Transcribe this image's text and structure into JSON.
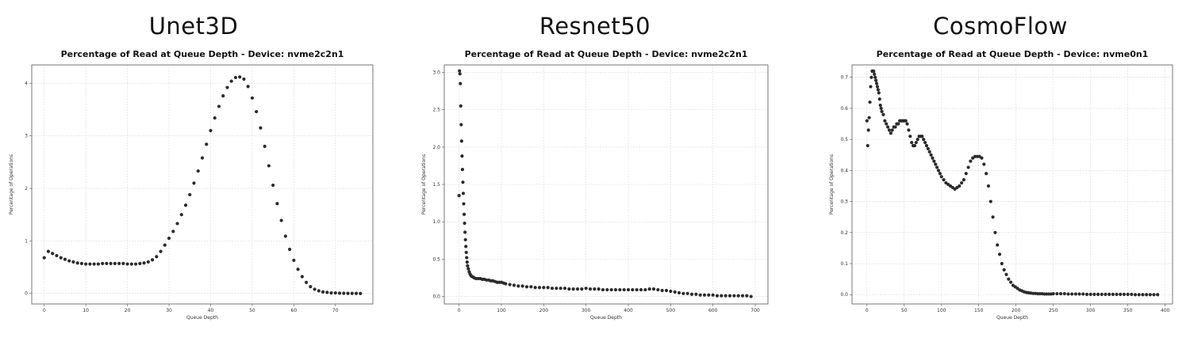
{
  "panels": [
    {
      "heading": "Unet3D"
    },
    {
      "heading": "Resnet50"
    },
    {
      "heading": "CosmoFlow"
    }
  ],
  "chart_data": [
    {
      "type": "scatter",
      "title": "Percentage of Read at Queue Depth - Device: nvme2c2n1",
      "xlabel": "Queue Depth",
      "ylabel": "Percentage of Operations",
      "xlim": [
        -3,
        79
      ],
      "ylim": [
        -0.2,
        4.35
      ],
      "xticks": [
        0,
        10,
        20,
        30,
        40,
        50,
        60,
        70
      ],
      "yticks": [
        0,
        1,
        2,
        3,
        4
      ],
      "grid": true,
      "color": "#2b2b2b",
      "x": [
        0,
        1,
        2,
        3,
        4,
        5,
        6,
        7,
        8,
        9,
        10,
        11,
        12,
        13,
        14,
        15,
        16,
        17,
        18,
        19,
        20,
        21,
        22,
        23,
        24,
        25,
        26,
        27,
        28,
        29,
        30,
        31,
        32,
        33,
        34,
        35,
        36,
        37,
        38,
        39,
        40,
        41,
        42,
        43,
        44,
        45,
        46,
        47,
        48,
        49,
        50,
        51,
        52,
        53,
        54,
        55,
        56,
        57,
        58,
        59,
        60,
        61,
        62,
        63,
        64,
        65,
        66,
        67,
        68,
        69,
        70,
        71,
        72,
        73,
        74,
        75,
        76
      ],
      "y": [
        0.68,
        0.8,
        0.76,
        0.72,
        0.68,
        0.65,
        0.62,
        0.6,
        0.58,
        0.57,
        0.56,
        0.56,
        0.56,
        0.56,
        0.57,
        0.57,
        0.57,
        0.57,
        0.57,
        0.57,
        0.56,
        0.56,
        0.56,
        0.57,
        0.58,
        0.6,
        0.64,
        0.7,
        0.8,
        0.92,
        1.05,
        1.18,
        1.33,
        1.5,
        1.68,
        1.88,
        2.1,
        2.33,
        2.58,
        2.84,
        3.1,
        3.34,
        3.56,
        3.76,
        3.92,
        4.04,
        4.11,
        4.12,
        4.08,
        3.94,
        3.72,
        3.46,
        3.15,
        2.8,
        2.43,
        2.06,
        1.71,
        1.39,
        1.09,
        0.84,
        0.63,
        0.46,
        0.32,
        0.21,
        0.13,
        0.08,
        0.05,
        0.03,
        0.02,
        0.01,
        0.01,
        0.005,
        0.003,
        0.002,
        0.001,
        0.001,
        0.0
      ]
    },
    {
      "type": "scatter",
      "title": "Percentage of Read at Queue Depth - Device: nvme2c2n1",
      "xlabel": "Queue Depth",
      "ylabel": "Percentage of Operations",
      "xlim": [
        -35,
        730
      ],
      "ylim": [
        -0.1,
        3.1
      ],
      "xticks": [
        0,
        100,
        200,
        300,
        400,
        500,
        600,
        700
      ],
      "yticks": [
        0.0,
        0.5,
        1.0,
        1.5,
        2.0,
        2.5,
        3.0
      ],
      "ytick_labels": [
        "0.0",
        "0.5",
        "1.0",
        "1.5",
        "2.0",
        "2.5",
        "3.0"
      ],
      "grid": true,
      "color": "#2b2b2b",
      "x": [
        0,
        1,
        2,
        3,
        4,
        5,
        6,
        7,
        8,
        9,
        10,
        11,
        12,
        13,
        14,
        15,
        16,
        17,
        18,
        19,
        20,
        22,
        24,
        26,
        28,
        30,
        33,
        36,
        40,
        45,
        50,
        55,
        60,
        65,
        70,
        75,
        80,
        85,
        90,
        95,
        100,
        105,
        110,
        120,
        130,
        140,
        150,
        160,
        170,
        180,
        190,
        200,
        210,
        220,
        230,
        240,
        250,
        260,
        270,
        280,
        290,
        300,
        310,
        320,
        330,
        340,
        350,
        360,
        370,
        380,
        390,
        400,
        410,
        420,
        430,
        440,
        450,
        460,
        470,
        480,
        490,
        500,
        510,
        520,
        530,
        540,
        550,
        560,
        570,
        580,
        590,
        600,
        610,
        620,
        630,
        640,
        650,
        660,
        670,
        680,
        690
      ],
      "y": [
        1.35,
        3.02,
        2.98,
        2.85,
        2.55,
        2.3,
        2.08,
        1.88,
        1.7,
        1.53,
        1.38,
        1.24,
        1.1,
        0.98,
        0.86,
        0.76,
        0.67,
        0.59,
        0.52,
        0.46,
        0.41,
        0.37,
        0.33,
        0.3,
        0.28,
        0.27,
        0.26,
        0.25,
        0.24,
        0.24,
        0.24,
        0.23,
        0.23,
        0.22,
        0.22,
        0.21,
        0.21,
        0.2,
        0.19,
        0.19,
        0.19,
        0.18,
        0.17,
        0.16,
        0.15,
        0.14,
        0.14,
        0.13,
        0.13,
        0.12,
        0.12,
        0.12,
        0.12,
        0.11,
        0.11,
        0.11,
        0.11,
        0.1,
        0.1,
        0.1,
        0.1,
        0.11,
        0.1,
        0.1,
        0.1,
        0.09,
        0.09,
        0.09,
        0.09,
        0.09,
        0.09,
        0.09,
        0.09,
        0.09,
        0.09,
        0.09,
        0.1,
        0.1,
        0.09,
        0.08,
        0.08,
        0.07,
        0.06,
        0.05,
        0.04,
        0.04,
        0.03,
        0.03,
        0.02,
        0.02,
        0.02,
        0.02,
        0.01,
        0.01,
        0.01,
        0.01,
        0.01,
        0.01,
        0.01,
        0.01,
        0.0
      ]
    },
    {
      "type": "scatter",
      "title": "Percentage of Read at Queue Depth - Device: nvme0n1",
      "xlabel": "Queue Depth",
      "ylabel": "Percentage of Operations",
      "xlim": [
        -20,
        410
      ],
      "ylim": [
        -0.03,
        0.74
      ],
      "xticks": [
        0,
        50,
        100,
        150,
        200,
        250,
        300,
        350,
        400
      ],
      "yticks": [
        0.0,
        0.1,
        0.2,
        0.3,
        0.4,
        0.5,
        0.6,
        0.7
      ],
      "ytick_labels": [
        "0.0",
        "0.1",
        "0.2",
        "0.3",
        "0.4",
        "0.5",
        "0.6",
        "0.7"
      ],
      "grid": true,
      "color": "#2b2b2b",
      "x": [
        0,
        1,
        2,
        3,
        4,
        5,
        6,
        7,
        8,
        9,
        10,
        11,
        12,
        13,
        14,
        15,
        16,
        17,
        18,
        19,
        20,
        22,
        24,
        26,
        28,
        30,
        32,
        34,
        36,
        38,
        40,
        42,
        44,
        46,
        48,
        50,
        52,
        54,
        56,
        58,
        60,
        62,
        64,
        66,
        68,
        70,
        72,
        74,
        76,
        78,
        80,
        82,
        84,
        86,
        88,
        90,
        92,
        94,
        96,
        98,
        100,
        103,
        106,
        109,
        112,
        115,
        118,
        121,
        124,
        127,
        130,
        133,
        136,
        139,
        142,
        145,
        148,
        151,
        154,
        157,
        160,
        163,
        166,
        169,
        172,
        175,
        178,
        181,
        184,
        187,
        190,
        193,
        196,
        199,
        202,
        205,
        208,
        211,
        214,
        217,
        220,
        223,
        226,
        229,
        232,
        235,
        238,
        241,
        244,
        247,
        250,
        255,
        260,
        265,
        270,
        275,
        280,
        285,
        290,
        295,
        300,
        305,
        310,
        315,
        320,
        325,
        330,
        335,
        340,
        345,
        350,
        355,
        360,
        365,
        370,
        375,
        380,
        385,
        390
      ],
      "y": [
        0.56,
        0.48,
        0.53,
        0.57,
        0.62,
        0.67,
        0.7,
        0.72,
        0.72,
        0.72,
        0.71,
        0.7,
        0.69,
        0.68,
        0.67,
        0.66,
        0.65,
        0.63,
        0.61,
        0.6,
        0.59,
        0.58,
        0.56,
        0.55,
        0.54,
        0.53,
        0.52,
        0.53,
        0.54,
        0.54,
        0.55,
        0.55,
        0.56,
        0.56,
        0.56,
        0.56,
        0.56,
        0.55,
        0.53,
        0.51,
        0.49,
        0.48,
        0.48,
        0.49,
        0.5,
        0.51,
        0.51,
        0.51,
        0.5,
        0.49,
        0.48,
        0.47,
        0.46,
        0.45,
        0.44,
        0.43,
        0.42,
        0.41,
        0.4,
        0.39,
        0.38,
        0.37,
        0.36,
        0.355,
        0.35,
        0.345,
        0.34,
        0.345,
        0.35,
        0.36,
        0.37,
        0.39,
        0.41,
        0.43,
        0.44,
        0.445,
        0.445,
        0.445,
        0.44,
        0.42,
        0.39,
        0.35,
        0.3,
        0.25,
        0.2,
        0.16,
        0.13,
        0.1,
        0.08,
        0.065,
        0.05,
        0.04,
        0.03,
        0.025,
        0.02,
        0.015,
        0.012,
        0.009,
        0.007,
        0.006,
        0.005,
        0.004,
        0.004,
        0.003,
        0.003,
        0.003,
        0.002,
        0.002,
        0.002,
        0.002,
        0.003,
        0.003,
        0.003,
        0.003,
        0.002,
        0.002,
        0.002,
        0.002,
        0.002,
        0.001,
        0.001,
        0.001,
        0.001,
        0.001,
        0.001,
        0.001,
        0.001,
        0.001,
        0.001,
        0.001,
        0.001,
        0.001,
        0.0,
        0.0,
        0.0,
        0.0,
        0.0,
        0.0,
        0.0
      ]
    }
  ]
}
